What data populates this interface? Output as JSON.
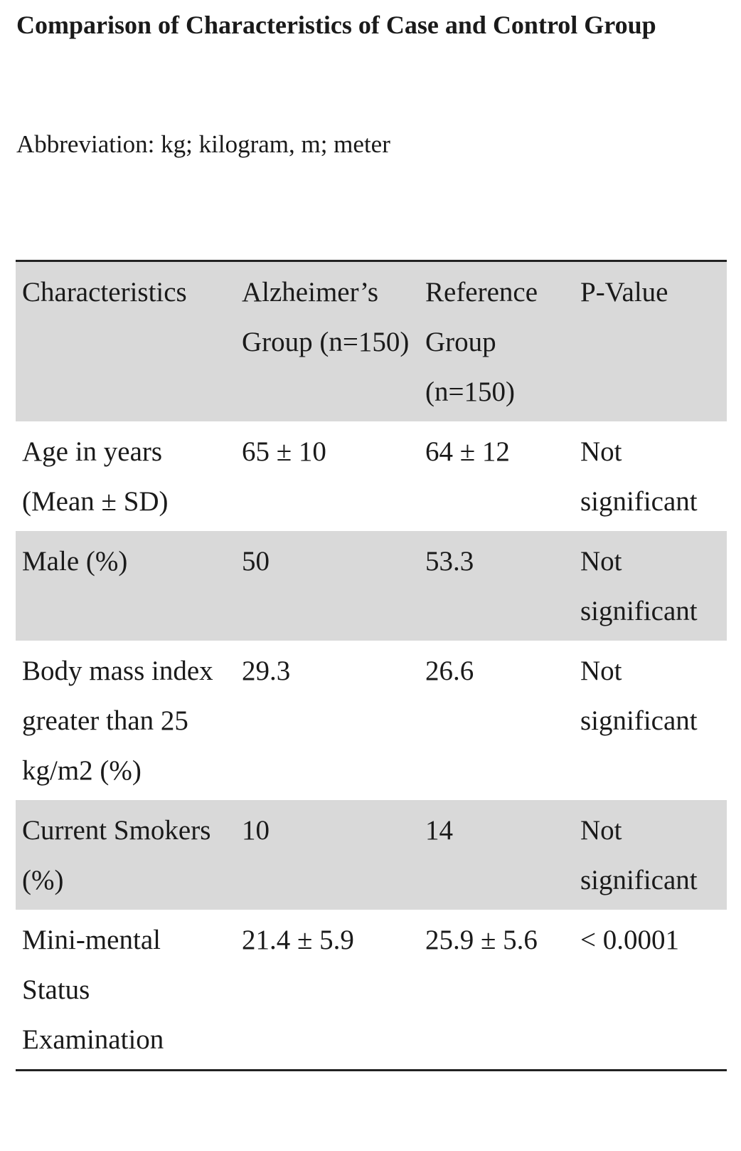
{
  "caption": {
    "title": "Comparison of Characteristics of Case and Control Group",
    "note": "Abbreviation: kg; kilogram, m; meter"
  },
  "table": {
    "headers": [
      "Characteristics",
      "Alzheimer’s Group (n=150)",
      "Reference Group (n=150)",
      "P-Value"
    ],
    "rows": [
      [
        "Age in years (Mean ± SD)",
        "65 ± 10",
        "64 ± 12",
        "Not significant"
      ],
      [
        "Male (%)",
        "50",
        "53.3",
        "Not significant"
      ],
      [
        "Body mass index greater than 25 kg/m2 (%)",
        "29.3",
        "26.6",
        "Not significant"
      ],
      [
        "Current Smokers (%)",
        "10",
        "14",
        "Not significant"
      ],
      [
        "Mini-mental Status Examination",
        "21.4 ± 5.9",
        "25.9 ± 5.6",
        "< 0.0001"
      ]
    ]
  },
  "colors": {
    "shaded_row": "#d9d9d9",
    "rule": "#222222",
    "text": "#1a1a1a"
  }
}
